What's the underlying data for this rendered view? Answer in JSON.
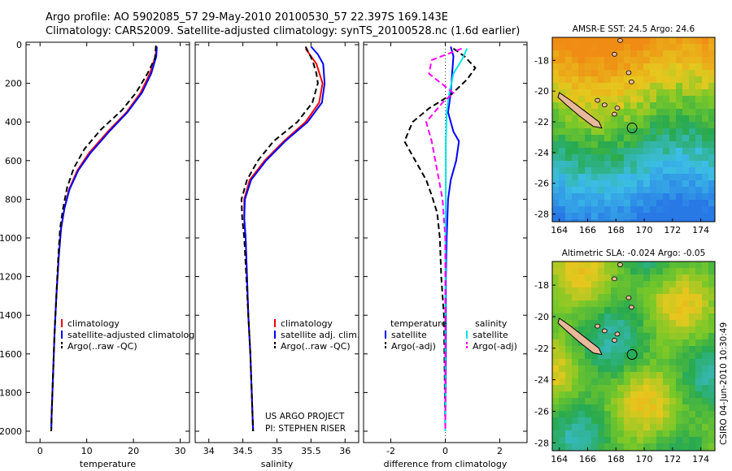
{
  "header": {
    "line1": "Argo profile: AO 5902085_57 29-May-2010 20100530_57 22.397S 169.143E",
    "line2": "Climatology: CARS2009. Satellite-adjusted climatology: synTS_20100528.nc (1.6d earlier)"
  },
  "side_credit": "CSIRO 04-Jun-2010 10:30:49",
  "project_note": {
    "line1": "US ARGO PROJECT",
    "line2": "PI: STEPHEN RISER"
  },
  "colors": {
    "climatology": "#ff0000",
    "satellite": "#0000ff",
    "argo": "#000000",
    "salinity_satellite": "#00e5e5",
    "salinity_argo": "#ff00ff"
  },
  "chart_data": [
    {
      "id": "temperature",
      "type": "line",
      "xlabel": "temperature",
      "xlim": [
        -3,
        32
      ],
      "ylim": [
        2060,
        0
      ],
      "x_ticks": [
        "0",
        "10",
        "20",
        "30"
      ],
      "x_tick_values": [
        0,
        10,
        20,
        30
      ],
      "y_ticks": [
        "0",
        "200",
        "400",
        "600",
        "800",
        "1000",
        "1200",
        "1400",
        "1600",
        "1800",
        "2000"
      ],
      "y_tick_values": [
        0,
        200,
        400,
        600,
        800,
        1000,
        1200,
        1400,
        1600,
        1800,
        2000
      ],
      "legend": [
        "climatology",
        "satellite-adjusted climatology",
        "Argo(..raw -QC)"
      ],
      "series": [
        {
          "name": "climatology",
          "color": "#ff0000",
          "dash": "",
          "points": [
            [
              24.9,
              25
            ],
            [
              24.7,
              60
            ],
            [
              23.5,
              150
            ],
            [
              21.5,
              250
            ],
            [
              18.5,
              350
            ],
            [
              14.5,
              450
            ],
            [
              10.5,
              560
            ],
            [
              8.0,
              650
            ],
            [
              6.2,
              750
            ],
            [
              5.2,
              850
            ],
            [
              4.5,
              950
            ],
            [
              4.0,
              1100
            ],
            [
              3.5,
              1300
            ],
            [
              3.1,
              1500
            ],
            [
              2.8,
              1700
            ],
            [
              2.5,
              1900
            ],
            [
              2.4,
              2000
            ]
          ]
        },
        {
          "name": "satellite-adjusted climatology",
          "color": "#0000ff",
          "dash": "",
          "points": [
            [
              25.0,
              10
            ],
            [
              24.9,
              60
            ],
            [
              23.8,
              150
            ],
            [
              21.8,
              250
            ],
            [
              18.7,
              350
            ],
            [
              14.8,
              450
            ],
            [
              10.8,
              560
            ],
            [
              8.2,
              650
            ],
            [
              6.3,
              750
            ],
            [
              5.2,
              850
            ],
            [
              4.5,
              950
            ],
            [
              4.0,
              1100
            ],
            [
              3.5,
              1300
            ],
            [
              3.1,
              1500
            ],
            [
              2.8,
              1700
            ],
            [
              2.5,
              1900
            ],
            [
              2.4,
              2000
            ]
          ]
        },
        {
          "name": "Argo(..raw -QC)",
          "color": "#000000",
          "dash": "7,4",
          "points": [
            [
              24.8,
              5
            ],
            [
              24.6,
              70
            ],
            [
              23.0,
              150
            ],
            [
              20.5,
              250
            ],
            [
              17.5,
              340
            ],
            [
              13.0,
              440
            ],
            [
              9.5,
              540
            ],
            [
              7.2,
              640
            ],
            [
              5.8,
              740
            ],
            [
              4.9,
              850
            ],
            [
              4.3,
              950
            ],
            [
              3.9,
              1100
            ],
            [
              3.5,
              1300
            ],
            [
              3.1,
              1500
            ],
            [
              2.8,
              1700
            ],
            [
              2.5,
              1900
            ],
            [
              2.4,
              2000
            ]
          ]
        }
      ]
    },
    {
      "id": "salinity",
      "type": "line",
      "xlabel": "salinity",
      "xlim": [
        33.8,
        36.2
      ],
      "ylim": [
        2060,
        0
      ],
      "x_ticks": [
        "34",
        "34.5",
        "35",
        "35.5",
        "36"
      ],
      "x_tick_values": [
        34,
        34.5,
        35,
        35.5,
        36
      ],
      "legend": [
        "climatology",
        "satellite adj. clim.",
        "Argo(..raw -QC)"
      ],
      "series": [
        {
          "name": "climatology",
          "color": "#ff0000",
          "dash": "",
          "points": [
            [
              35.42,
              20
            ],
            [
              35.48,
              50
            ],
            [
              35.58,
              100
            ],
            [
              35.67,
              200
            ],
            [
              35.62,
              300
            ],
            [
              35.42,
              400
            ],
            [
              35.1,
              500
            ],
            [
              34.82,
              600
            ],
            [
              34.6,
              700
            ],
            [
              34.52,
              800
            ],
            [
              34.52,
              900
            ],
            [
              34.54,
              1000
            ],
            [
              34.56,
              1200
            ],
            [
              34.58,
              1400
            ],
            [
              34.61,
              1600
            ],
            [
              34.63,
              1800
            ],
            [
              34.65,
              2000
            ]
          ]
        },
        {
          "name": "satellite adj. clim.",
          "color": "#0000ff",
          "dash": "",
          "points": [
            [
              35.5,
              10
            ],
            [
              35.6,
              50
            ],
            [
              35.68,
              100
            ],
            [
              35.7,
              200
            ],
            [
              35.66,
              300
            ],
            [
              35.45,
              400
            ],
            [
              35.12,
              500
            ],
            [
              34.84,
              600
            ],
            [
              34.62,
              700
            ],
            [
              34.53,
              800
            ],
            [
              34.52,
              900
            ],
            [
              34.54,
              1000
            ],
            [
              34.56,
              1200
            ],
            [
              34.58,
              1400
            ],
            [
              34.61,
              1600
            ],
            [
              34.63,
              1800
            ],
            [
              34.65,
              2000
            ]
          ]
        },
        {
          "name": "Argo(..raw -QC)",
          "color": "#000000",
          "dash": "7,4",
          "points": [
            [
              35.42,
              10
            ],
            [
              35.52,
              80
            ],
            [
              35.58,
              150
            ],
            [
              35.6,
              200
            ],
            [
              35.52,
              300
            ],
            [
              35.3,
              400
            ],
            [
              34.95,
              500
            ],
            [
              34.72,
              600
            ],
            [
              34.56,
              700
            ],
            [
              34.48,
              800
            ],
            [
              34.49,
              900
            ],
            [
              34.52,
              1000
            ],
            [
              34.55,
              1200
            ],
            [
              34.58,
              1400
            ],
            [
              34.61,
              1600
            ],
            [
              34.63,
              1800
            ],
            [
              34.65,
              2000
            ]
          ]
        }
      ]
    },
    {
      "id": "difference",
      "type": "line",
      "xlabel": "difference from climatology",
      "xlim": [
        -3,
        3
      ],
      "ylim": [
        2060,
        0
      ],
      "x_ticks": [
        "-2",
        "0",
        "2"
      ],
      "x_tick_values": [
        -2,
        0,
        2
      ],
      "legend_headers": [
        "temperature",
        "salinity"
      ],
      "legend": [
        "satellite",
        "Argo(-adj)",
        "satellite",
        "Argo(-adj)"
      ],
      "series": [
        {
          "name": "temperature satellite",
          "color": "#0000ff",
          "dash": "",
          "points": [
            [
              0.2,
              10
            ],
            [
              0.3,
              60
            ],
            [
              0.25,
              150
            ],
            [
              0.2,
              250
            ],
            [
              0.1,
              350
            ],
            [
              0.3,
              450
            ],
            [
              0.5,
              500
            ],
            [
              0.4,
              600
            ],
            [
              0.2,
              700
            ],
            [
              0.1,
              800
            ],
            [
              0.05,
              1000
            ],
            [
              0.02,
              1200
            ],
            [
              0.02,
              1600
            ],
            [
              0.0,
              2000
            ]
          ]
        },
        {
          "name": "temperature Argo(-adj)",
          "color": "#000000",
          "dash": "7,4",
          "points": [
            [
              0.3,
              20
            ],
            [
              0.7,
              60
            ],
            [
              1.1,
              120
            ],
            [
              0.8,
              180
            ],
            [
              0.2,
              260
            ],
            [
              -0.6,
              330
            ],
            [
              -1.2,
              400
            ],
            [
              -1.5,
              500
            ],
            [
              -1.1,
              600
            ],
            [
              -0.7,
              700
            ],
            [
              -0.5,
              780
            ],
            [
              -0.3,
              870
            ],
            [
              -0.2,
              1000
            ],
            [
              -0.15,
              1200
            ],
            [
              -0.05,
              1400
            ],
            [
              0.0,
              2000
            ]
          ]
        },
        {
          "name": "salinity satellite",
          "color": "#00e5e5",
          "dash": "",
          "points": [
            [
              0.8,
              20
            ],
            [
              0.6,
              80
            ],
            [
              0.3,
              150
            ],
            [
              0.15,
              250
            ],
            [
              0.05,
              350
            ],
            [
              0.02,
              500
            ],
            [
              0.02,
              700
            ],
            [
              0.01,
              1000
            ],
            [
              0.0,
              1400
            ],
            [
              0.0,
              2000
            ]
          ]
        },
        {
          "name": "salinity Argo(-adj)",
          "color": "#ff00ff",
          "dash": "7,4",
          "points": [
            [
              0.6,
              20
            ],
            [
              -0.5,
              80
            ],
            [
              -0.6,
              150
            ],
            [
              0.3,
              250
            ],
            [
              -0.1,
              300
            ],
            [
              -0.7,
              400
            ],
            [
              -0.5,
              500
            ],
            [
              -0.3,
              650
            ],
            [
              -0.1,
              800
            ],
            [
              0.0,
              1000
            ],
            [
              0.0,
              1400
            ],
            [
              0.0,
              2000
            ]
          ]
        }
      ]
    },
    {
      "id": "sst_map",
      "type": "heatmap",
      "title": "AMSR-E SST: 24.5 Argo: 24.6",
      "x_ticks": [
        "164",
        "166",
        "168",
        "170",
        "172",
        "174"
      ],
      "x_tick_values": [
        164,
        166,
        168,
        170,
        172,
        174
      ],
      "y_ticks": [
        "-18",
        "-20",
        "-22",
        "-24",
        "-26",
        "-28"
      ],
      "y_tick_values": [
        -18,
        -20,
        -22,
        -24,
        -26,
        -28
      ],
      "xlim": [
        163.5,
        175
      ],
      "ylim": [
        -28.5,
        -16.5
      ],
      "float_position": [
        169.143,
        -22.397
      ]
    },
    {
      "id": "sla_map",
      "type": "heatmap",
      "title": "Altimetric SLA: -0.024 Argo: -0.05",
      "x_ticks": [
        "164",
        "166",
        "168",
        "170",
        "172",
        "174"
      ],
      "x_tick_values": [
        164,
        166,
        168,
        170,
        172,
        174
      ],
      "y_ticks": [
        "-18",
        "-20",
        "-22",
        "-24",
        "-26",
        "-28"
      ],
      "y_tick_values": [
        -18,
        -20,
        -22,
        -24,
        -26,
        -28
      ],
      "xlim": [
        163.5,
        175
      ],
      "ylim": [
        -28.5,
        -16.5
      ],
      "float_position": [
        169.143,
        -22.397
      ]
    }
  ]
}
